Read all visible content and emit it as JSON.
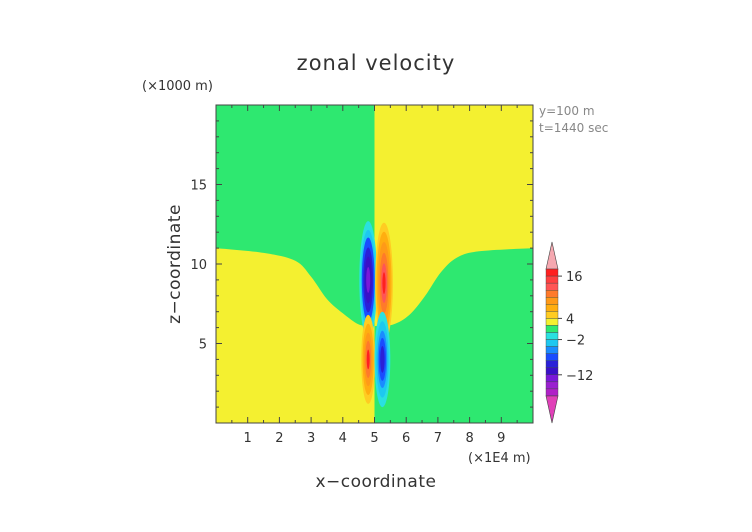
{
  "chart_data": {
    "type": "heatmap",
    "title": "zonal velocity",
    "xlabel": "x−coordinate",
    "ylabel": "z−coordinate",
    "x_scale_label": "(×1E4 m)",
    "y_scale_label": "(×1000 m)",
    "annotations": [
      "y=100 m",
      "t=1440 sec"
    ],
    "xlim": [
      0,
      10
    ],
    "ylim": [
      0,
      20
    ],
    "x_ticks": [
      "1",
      "2",
      "3",
      "4",
      "5",
      "6",
      "7",
      "8",
      "9"
    ],
    "y_ticks": [
      "5",
      "10",
      "15"
    ],
    "y_tick_values": [
      5,
      10,
      15
    ],
    "grid": false,
    "colorbar": {
      "position": "right",
      "labels": [
        "16",
        "4",
        "−2",
        "−12"
      ],
      "label_values": [
        16,
        4,
        -2,
        -12
      ],
      "levels": [
        {
          "min": 18,
          "max": 20,
          "color": "#f5a8b0"
        },
        {
          "min": 16,
          "max": 18,
          "color": "#ff2020"
        },
        {
          "min": 14,
          "max": 16,
          "color": "#ff4040"
        },
        {
          "min": 12,
          "max": 14,
          "color": "#ff5555"
        },
        {
          "min": 10,
          "max": 12,
          "color": "#ff7a2a"
        },
        {
          "min": 8,
          "max": 10,
          "color": "#ff9a18"
        },
        {
          "min": 6,
          "max": 8,
          "color": "#ffae10"
        },
        {
          "min": 4,
          "max": 6,
          "color": "#ffcc22"
        },
        {
          "min": 2,
          "max": 4,
          "color": "#f4f030"
        },
        {
          "min": 0,
          "max": 2,
          "color": "#2ee870"
        },
        {
          "min": -2,
          "max": 0,
          "color": "#2ae0e0"
        },
        {
          "min": -4,
          "max": -2,
          "color": "#1ec8f0"
        },
        {
          "min": -6,
          "max": -4,
          "color": "#1a8cff"
        },
        {
          "min": -8,
          "max": -6,
          "color": "#1a4cff"
        },
        {
          "min": -10,
          "max": -8,
          "color": "#2a20d8"
        },
        {
          "min": -12,
          "max": -10,
          "color": "#3a10c8"
        },
        {
          "min": -14,
          "max": -12,
          "color": "#7a18d8"
        },
        {
          "min": -16,
          "max": -14,
          "color": "#9a20d0"
        },
        {
          "min": -18,
          "max": -16,
          "color": "#b020c8"
        },
        {
          "min": -20,
          "max": -18,
          "color": "#e040b8"
        }
      ]
    },
    "field": {
      "background": {
        "upper_left": "#2ee870",
        "upper_right": "#f4f030",
        "lower_left": "#f4f030",
        "lower_right": "#2ee870",
        "left_boundary_z": [
          [
            0,
            11
          ],
          [
            1.5,
            10.7
          ],
          [
            2.5,
            10.2
          ],
          [
            3,
            9.2
          ],
          [
            3.5,
            7.8
          ],
          [
            4,
            6.9
          ],
          [
            4.5,
            6.2
          ],
          [
            4.9,
            6.1
          ]
        ],
        "right_boundary_z": [
          [
            5.1,
            6.1
          ],
          [
            5.6,
            6.2
          ],
          [
            6.1,
            6.8
          ],
          [
            6.6,
            8
          ],
          [
            7.1,
            9.5
          ],
          [
            7.6,
            10.4
          ],
          [
            8.3,
            10.8
          ],
          [
            10,
            11
          ]
        ],
        "vertical_split_x": 5
      },
      "blobs": [
        {
          "x": 4.8,
          "z": 9.0,
          "rx": 0.28,
          "rz": 3.7,
          "levels": [
            {
              "color": "#2ae0e0",
              "scale": 1.0
            },
            {
              "color": "#1ec8f0",
              "scale": 0.85
            },
            {
              "color": "#1a4cff",
              "scale": 0.72
            },
            {
              "color": "#2a20d8",
              "scale": 0.55
            },
            {
              "color": "#3a10c8",
              "scale": 0.4
            },
            {
              "color": "#7a18d8",
              "scale": 0.22
            }
          ]
        },
        {
          "x": 5.3,
          "z": 8.8,
          "rx": 0.28,
          "rz": 3.8,
          "levels": [
            {
              "color": "#ffcc22",
              "scale": 1.0
            },
            {
              "color": "#ffae10",
              "scale": 0.85
            },
            {
              "color": "#ff9a18",
              "scale": 0.68
            },
            {
              "color": "#ff7a2a",
              "scale": 0.5
            },
            {
              "color": "#ff5555",
              "scale": 0.33
            },
            {
              "color": "#ff2020",
              "scale": 0.18
            }
          ]
        },
        {
          "x": 4.8,
          "z": 4.0,
          "rx": 0.22,
          "rz": 2.8,
          "levels": [
            {
              "color": "#ffcc22",
              "scale": 1.0
            },
            {
              "color": "#ffae10",
              "scale": 0.8
            },
            {
              "color": "#ff9a18",
              "scale": 0.6
            },
            {
              "color": "#ff7a2a",
              "scale": 0.42
            },
            {
              "color": "#ff2020",
              "scale": 0.22
            }
          ]
        },
        {
          "x": 5.25,
          "z": 4.0,
          "rx": 0.25,
          "rz": 3.0,
          "levels": [
            {
              "color": "#2ae0e0",
              "scale": 1.0
            },
            {
              "color": "#1ec8f0",
              "scale": 0.8
            },
            {
              "color": "#1a8cff",
              "scale": 0.6
            },
            {
              "color": "#1a4cff",
              "scale": 0.45
            },
            {
              "color": "#2a20d8",
              "scale": 0.28
            }
          ]
        }
      ]
    }
  }
}
